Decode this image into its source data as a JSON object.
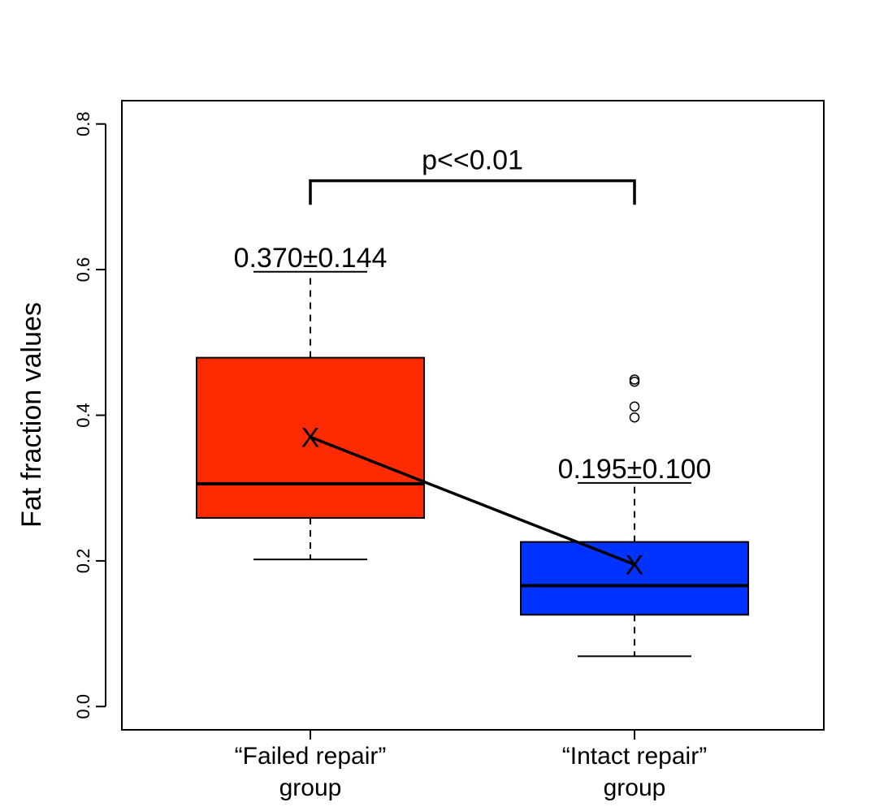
{
  "chart_data": {
    "type": "box",
    "ylabel": "Fat fraction values",
    "xlabel": "",
    "ylim": [
      -0.032,
      0.832
    ],
    "yticks": [
      {
        "value": 0.0,
        "label": "0.0"
      },
      {
        "value": 0.2,
        "label": "0.2"
      },
      {
        "value": 0.4,
        "label": "0.4"
      },
      {
        "value": 0.6,
        "label": "0.6"
      },
      {
        "value": 0.8,
        "label": "0.8"
      }
    ],
    "groups": [
      {
        "label_line1": "“Failed repair”",
        "label_line2": "group",
        "color": "#ff2b00",
        "whisker_low": 0.202,
        "q1": 0.259,
        "median": 0.306,
        "q3": 0.479,
        "whisker_high": 0.597,
        "mean": 0.37,
        "sd": 0.144,
        "outliers": [],
        "annotation": "0.370±0.144"
      },
      {
        "label_line1": "“Intact repair”",
        "label_line2": "group",
        "color": "#0033ff",
        "whisker_low": 0.069,
        "q1": 0.126,
        "median": 0.166,
        "q3": 0.226,
        "whisker_high": 0.307,
        "mean": 0.195,
        "sd": 0.1,
        "outliers": [
          0.397,
          0.412,
          0.446,
          0.449
        ],
        "annotation": "0.195±0.100"
      }
    ],
    "mean_marker": "X",
    "significance": {
      "label": "p<<0.01",
      "bracket_y": 0.722,
      "bracket_drop_y": 0.689
    }
  }
}
